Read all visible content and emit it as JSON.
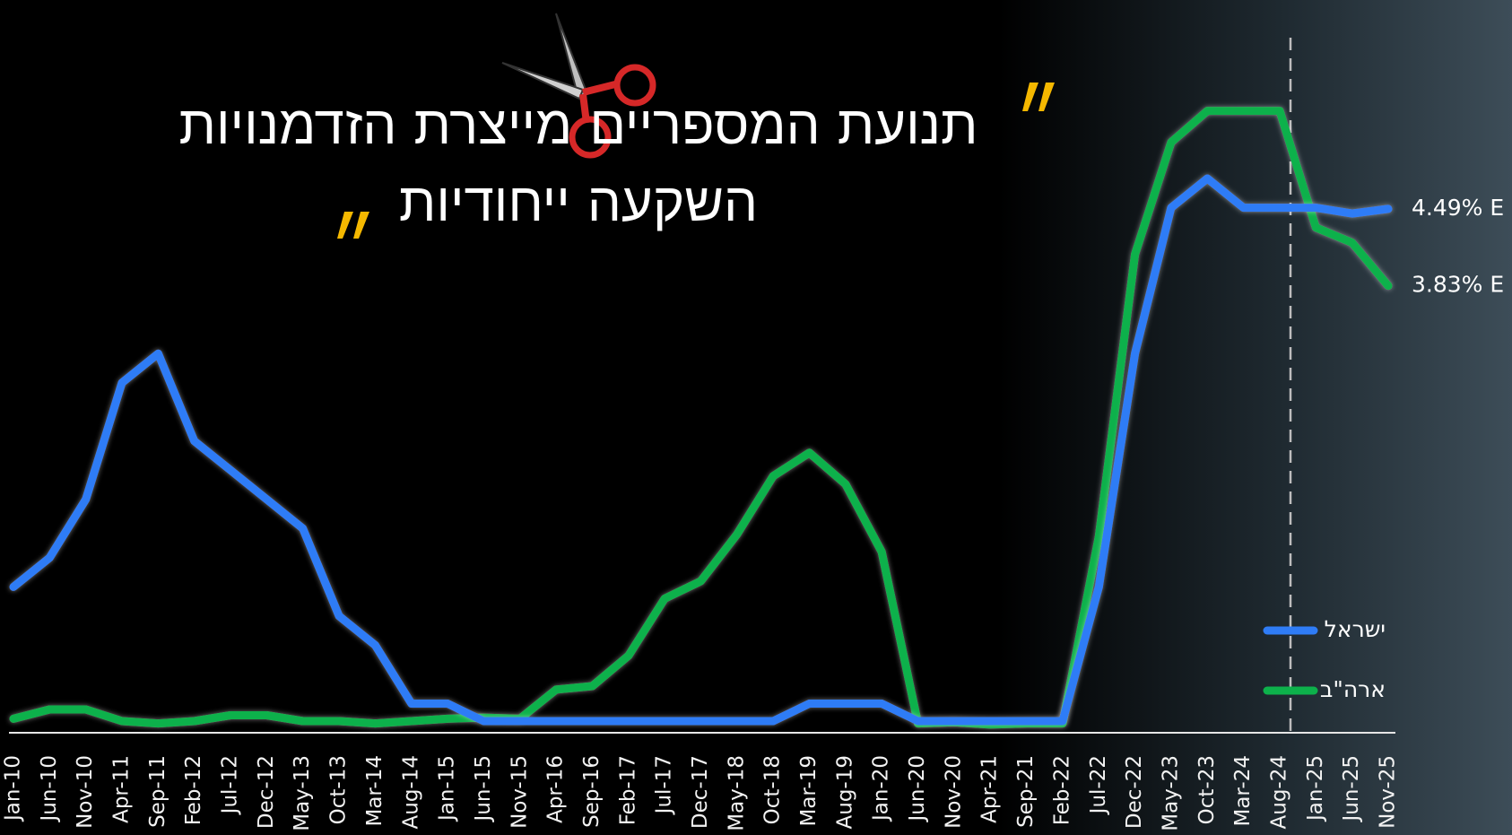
{
  "chart_data": {
    "type": "line",
    "title_lines": [
      "תנועת המספריים מייצרת הזדמנויות",
      "השקעה ייחודיות"
    ],
    "categories": [
      "Jan-10",
      "Jun-10",
      "Nov-10",
      "Apr-11",
      "Sep-11",
      "Feb-12",
      "Jul-12",
      "Dec-12",
      "May-13",
      "Oct-13",
      "Mar-14",
      "Aug-14",
      "Jan-15",
      "Jun-15",
      "Nov-15",
      "Apr-16",
      "Sep-16",
      "Feb-17",
      "Jul-17",
      "Dec-17",
      "May-18",
      "Oct-18",
      "Mar-19",
      "Aug-19",
      "Jan-20",
      "Jun-20",
      "Nov-20",
      "Apr-21",
      "Sep-21",
      "Feb-22",
      "Jul-22",
      "Dec-22",
      "May-23",
      "Oct-23",
      "Mar-24",
      "Aug-24",
      "Jan-25",
      "Jun-25",
      "Nov-25"
    ],
    "series": [
      {
        "name": "ישראל",
        "color": "#2f7cf6",
        "values": [
          1.25,
          1.5,
          2.0,
          3.0,
          3.25,
          2.5,
          2.25,
          2.0,
          1.75,
          1.0,
          0.75,
          0.25,
          0.25,
          0.1,
          0.1,
          0.1,
          0.1,
          0.1,
          0.1,
          0.1,
          0.1,
          0.1,
          0.25,
          0.25,
          0.25,
          0.1,
          0.1,
          0.1,
          0.1,
          0.1,
          1.25,
          3.25,
          4.5,
          4.75,
          4.5,
          4.5,
          4.5,
          4.45,
          4.49
        ],
        "value_labels": [
          null,
          null,
          null,
          null,
          null,
          null,
          null,
          null,
          null,
          null,
          null,
          null,
          null,
          null,
          null,
          null,
          null,
          null,
          null,
          null,
          null,
          null,
          null,
          null,
          null,
          null,
          null,
          null,
          null,
          null,
          null,
          null,
          null,
          null,
          null,
          null,
          null,
          null,
          "4.49% E"
        ]
      },
      {
        "name": "ארה\"ב",
        "color": "#0db14b",
        "values": [
          0.12,
          0.2,
          0.2,
          0.1,
          0.08,
          0.1,
          0.15,
          0.15,
          0.1,
          0.1,
          0.08,
          0.1,
          0.12,
          0.13,
          0.12,
          0.37,
          0.4,
          0.66,
          1.15,
          1.3,
          1.7,
          2.2,
          2.4,
          2.13,
          1.55,
          0.08,
          0.09,
          0.07,
          0.08,
          0.08,
          1.68,
          4.1,
          5.06,
          5.33,
          5.33,
          5.33,
          4.33,
          4.2,
          3.83
        ],
        "value_labels": [
          null,
          null,
          null,
          null,
          null,
          null,
          null,
          null,
          null,
          null,
          null,
          null,
          null,
          null,
          null,
          null,
          null,
          null,
          null,
          null,
          null,
          null,
          null,
          null,
          null,
          null,
          null,
          null,
          null,
          null,
          null,
          null,
          null,
          null,
          null,
          null,
          null,
          null,
          "3.83% E"
        ]
      }
    ],
    "ylim": [
      0,
      6.28
    ],
    "legend": "lower right"
  }
}
